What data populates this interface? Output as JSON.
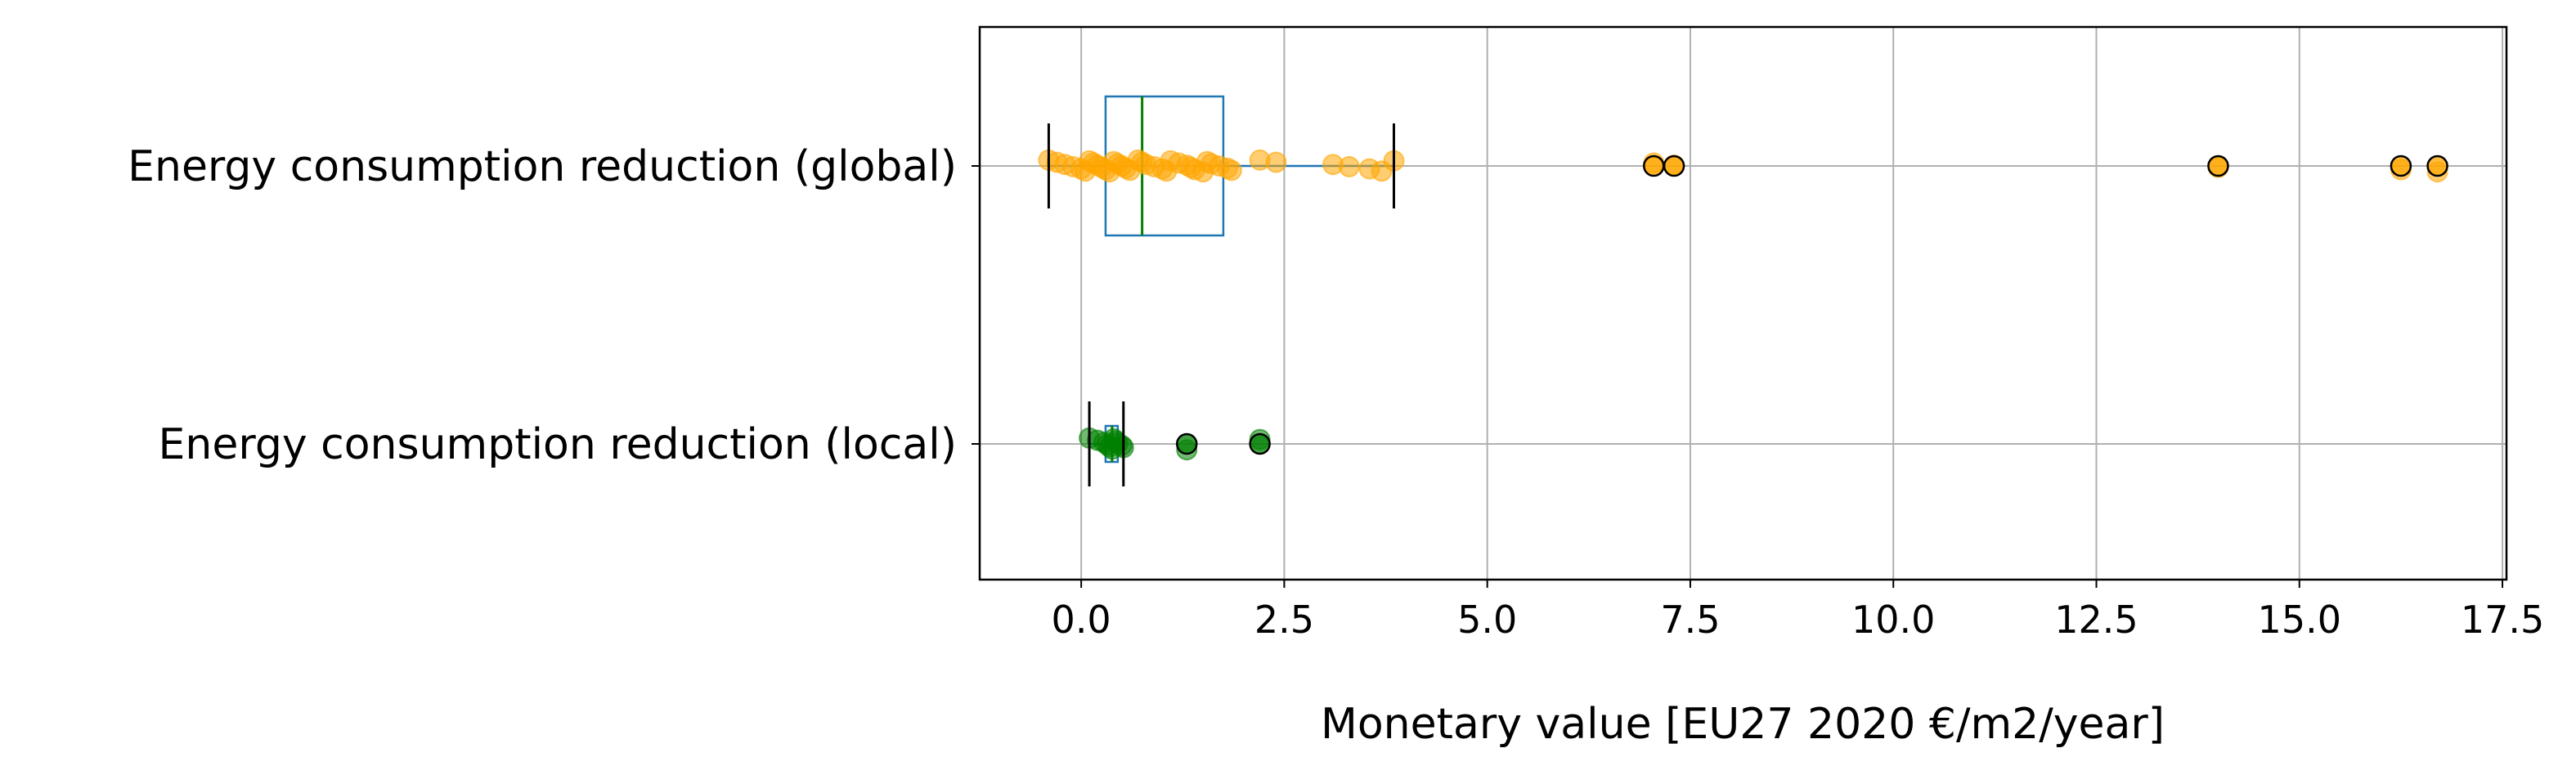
{
  "chart_data": {
    "type": "box",
    "orientation": "horizontal",
    "title": "",
    "xlabel": "Monetary value [EU27 2020 €/m2/year]",
    "ylabel": "",
    "xlim": [
      -1.25,
      17.55
    ],
    "xticks": [
      0.0,
      2.5,
      5.0,
      7.5,
      10.0,
      12.5,
      15.0,
      17.5
    ],
    "xtick_labels": [
      "0.0",
      "2.5",
      "5.0",
      "7.5",
      "10.0",
      "12.5",
      "15.0",
      "17.5"
    ],
    "grid": true,
    "categories": [
      "Energy consumption reduction (global)",
      "Energy consumption reduction (local)"
    ],
    "series": [
      {
        "category": "Energy consumption reduction (global)",
        "whisker_low": -0.4,
        "q1": 0.3,
        "median": 0.75,
        "q3": 1.75,
        "whisker_high": 3.85,
        "outliers": [
          7.05,
          7.3,
          14.0,
          16.25,
          16.7
        ],
        "points": [
          -0.4,
          -0.3,
          -0.2,
          -0.1,
          0.0,
          0.05,
          0.1,
          0.15,
          0.2,
          0.25,
          0.3,
          0.35,
          0.4,
          0.45,
          0.5,
          0.55,
          0.6,
          0.7,
          0.75,
          0.8,
          0.9,
          1.0,
          1.05,
          1.1,
          1.2,
          1.3,
          1.35,
          1.4,
          1.5,
          1.55,
          1.6,
          1.7,
          1.8,
          1.85,
          2.2,
          2.4,
          3.1,
          3.3,
          3.55,
          3.7,
          3.85,
          7.05,
          7.3,
          14.0,
          16.25,
          16.7
        ],
        "box_color": "#1f77b4",
        "median_color": "#008000",
        "point_color": "#ffa500"
      },
      {
        "category": "Energy consumption reduction (local)",
        "whisker_low": 0.1,
        "q1": 0.3,
        "median": 0.38,
        "q3": 0.45,
        "whisker_high": 0.52,
        "outliers": [
          1.3,
          2.2
        ],
        "points": [
          0.1,
          0.2,
          0.28,
          0.32,
          0.35,
          0.38,
          0.4,
          0.42,
          0.45,
          0.5,
          0.52,
          1.3,
          2.2
        ],
        "box_color": "#1f77b4",
        "median_color": "#008000",
        "point_color": "#008000"
      }
    ]
  }
}
